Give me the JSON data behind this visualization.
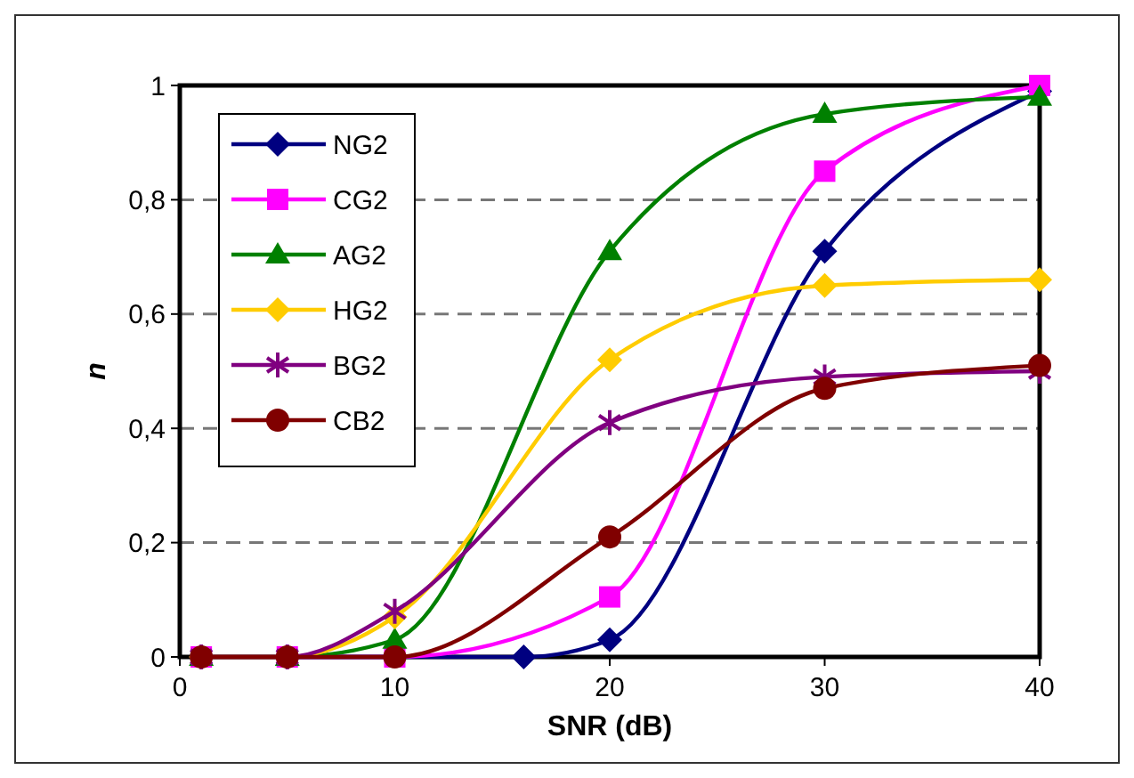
{
  "chart_data": {
    "type": "line",
    "xlabel": "SNR (dB)",
    "ylabel": "n",
    "xlim": [
      0,
      40
    ],
    "xticks": [
      0,
      10,
      20,
      30,
      40
    ],
    "ylim": [
      0,
      1
    ],
    "yticks": [
      {
        "value": 0,
        "label": "0"
      },
      {
        "value": 0.2,
        "label": "0,2"
      },
      {
        "value": 0.4,
        "label": "0,4"
      },
      {
        "value": 0.6,
        "label": "0,6"
      },
      {
        "value": 0.8,
        "label": "0,8"
      },
      {
        "value": 1,
        "label": "1"
      }
    ],
    "grid": "y",
    "legend": "top left",
    "line_style": "solid",
    "series": [
      {
        "name": "NG2",
        "color": "#000080",
        "marker": "diamond",
        "x": [
          1,
          5,
          16,
          20,
          30,
          40
        ],
        "values": [
          0,
          0,
          0,
          0.03,
          0.71,
          0.99
        ]
      },
      {
        "name": "CG2",
        "color": "#ff00ff",
        "marker": "square",
        "x": [
          1,
          5,
          10,
          20,
          30,
          40
        ],
        "values": [
          0,
          0,
          0,
          0.105,
          0.85,
          1
        ]
      },
      {
        "name": "AG2",
        "color": "#008000",
        "marker": "triangle",
        "x": [
          1,
          5,
          10,
          20,
          30,
          40
        ],
        "values": [
          0,
          0,
          0.03,
          0.71,
          0.95,
          0.98
        ]
      },
      {
        "name": "HG2",
        "color": "#ffcc00",
        "marker": "diamond",
        "x": [
          1,
          5,
          10,
          20,
          30,
          40
        ],
        "values": [
          0,
          0,
          0.07,
          0.52,
          0.65,
          0.66
        ]
      },
      {
        "name": "BG2",
        "color": "#800080",
        "marker": "cross",
        "x": [
          1,
          5,
          10,
          20,
          30,
          40
        ],
        "values": [
          0,
          0,
          0.08,
          0.41,
          0.49,
          0.5
        ]
      },
      {
        "name": "CB2",
        "color": "#800000",
        "marker": "circle",
        "x": [
          1,
          5,
          10,
          20,
          30,
          40
        ],
        "values": [
          0,
          0,
          0,
          0.21,
          0.47,
          0.51
        ]
      }
    ]
  }
}
